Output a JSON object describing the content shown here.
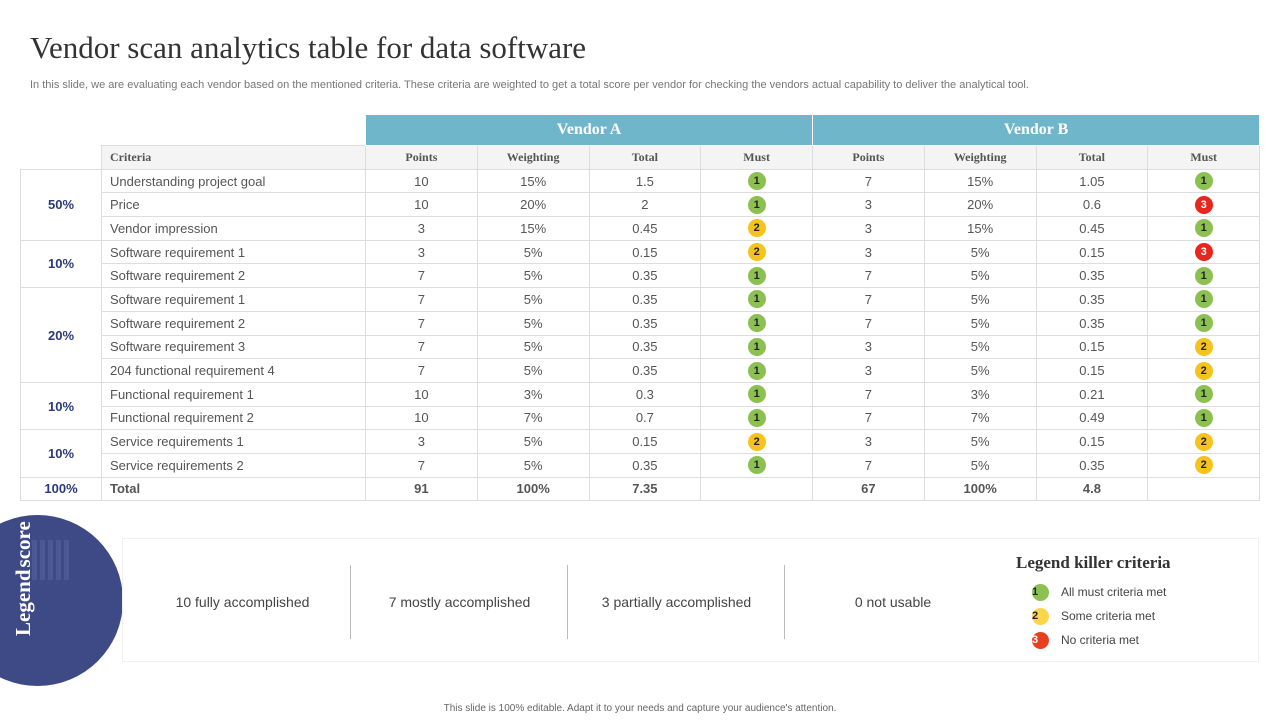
{
  "title": "Vendor scan analytics table for data software",
  "subtitle": "In this slide, we are evaluating each vendor based on the mentioned criteria. These criteria are weighted to get a total score per vendor for checking the vendors actual capability to  deliver the analytical tool.",
  "badge_colors": {
    "1": "#8cc152",
    "2": "#f6c21c",
    "3": "#e8261e"
  },
  "table": {
    "vendors": [
      "Vendor A",
      "Vendor B"
    ],
    "headers": [
      "Criteria",
      "Points",
      "Weighting",
      "Total",
      "Must",
      "Points",
      "Weighting",
      "Total",
      "Must"
    ],
    "groups": [
      {
        "label": "50%",
        "rows": [
          {
            "criteria": "Understanding  project goal",
            "a": [
              "10",
              "15%",
              "1.5",
              "1"
            ],
            "b": [
              "7",
              "15%",
              "1.05",
              "1"
            ]
          },
          {
            "criteria": "Price",
            "a": [
              "10",
              "20%",
              "2",
              "1"
            ],
            "b": [
              "3",
              "20%",
              "0.6",
              "3"
            ]
          },
          {
            "criteria": "Vendor impression",
            "a": [
              "3",
              "15%",
              "0.45",
              "2"
            ],
            "b": [
              "3",
              "15%",
              "0.45",
              "1"
            ]
          }
        ]
      },
      {
        "label": "10%",
        "rows": [
          {
            "criteria": "Software  requirement  1",
            "a": [
              "3",
              "5%",
              "0.15",
              "2"
            ],
            "b": [
              "3",
              "5%",
              "0.15",
              "3"
            ]
          },
          {
            "criteria": "Software  requirement  2",
            "a": [
              "7",
              "5%",
              "0.35",
              "1"
            ],
            "b": [
              "7",
              "5%",
              "0.35",
              "1"
            ]
          }
        ]
      },
      {
        "label": "20%",
        "rows": [
          {
            "criteria": "Software  requirement  1",
            "a": [
              "7",
              "5%",
              "0.35",
              "1"
            ],
            "b": [
              "7",
              "5%",
              "0.35",
              "1"
            ]
          },
          {
            "criteria": "Software  requirement  2",
            "a": [
              "7",
              "5%",
              "0.35",
              "1"
            ],
            "b": [
              "7",
              "5%",
              "0.35",
              "1"
            ]
          },
          {
            "criteria": "Software  requirement  3",
            "a": [
              "7",
              "5%",
              "0.35",
              "1"
            ],
            "b": [
              "3",
              "5%",
              "0.15",
              "2"
            ]
          },
          {
            "criteria": "204 functional requirement  4",
            "a": [
              "7",
              "5%",
              "0.35",
              "1"
            ],
            "b": [
              "3",
              "5%",
              "0.15",
              "2"
            ]
          }
        ]
      },
      {
        "label": "10%",
        "rows": [
          {
            "criteria": "Functional  requirement  1",
            "a": [
              "10",
              "3%",
              "0.3",
              "1"
            ],
            "b": [
              "7",
              "3%",
              "0.21",
              "1"
            ]
          },
          {
            "criteria": "Functional  requirement  2",
            "a": [
              "10",
              "7%",
              "0.7",
              "1"
            ],
            "b": [
              "7",
              "7%",
              "0.49",
              "1"
            ]
          }
        ]
      },
      {
        "label": "10%",
        "rows": [
          {
            "criteria": "Service  requirements  1",
            "a": [
              "3",
              "5%",
              "0.15",
              "2"
            ],
            "b": [
              "3",
              "5%",
              "0.15",
              "2"
            ]
          },
          {
            "criteria": "Service  requirements  2",
            "a": [
              "7",
              "5%",
              "0.35",
              "1"
            ],
            "b": [
              "7",
              "5%",
              "0.35",
              "2"
            ]
          }
        ]
      }
    ],
    "total": {
      "label": "100%",
      "criteria": "Total",
      "a": [
        "91",
        "100%",
        "7.35",
        ""
      ],
      "b": [
        "67",
        "100%",
        "4.8",
        ""
      ]
    }
  },
  "legend_score": {
    "title_line1": "Legend",
    "title_line2": "score",
    "items": [
      "10 fully accomplished",
      "7 mostly accomplished",
      "3 partially accomplished",
      "0 not usable"
    ]
  },
  "legend_killer": {
    "title": "Legend killer criteria",
    "items": [
      {
        "num": "1",
        "label": "All  must criteria met",
        "color": "#8cc152"
      },
      {
        "num": "2",
        "label": "Some criteria met",
        "color": "#fbd54a"
      },
      {
        "num": "3",
        "label": "No criteria met",
        "color": "#e8401e"
      }
    ]
  },
  "footer": "This slide is 100% editable.  Adapt it to your needs and capture your audience's attention."
}
